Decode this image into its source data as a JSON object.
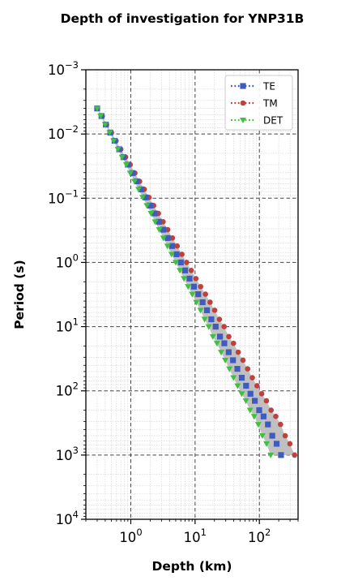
{
  "chart_data": {
    "type": "scatter",
    "title": "Depth of investigation for YNP31B",
    "xlabel": "Depth (km)",
    "ylabel": "Period (s)",
    "x_scale": "log",
    "y_scale": "log",
    "y_inverted": true,
    "xlim": [
      0.2,
      400
    ],
    "ylim": [
      0.001,
      10000
    ],
    "x_ticks": [
      {
        "value": 1,
        "base": "10",
        "exp": "0"
      },
      {
        "value": 10,
        "base": "10",
        "exp": "1"
      },
      {
        "value": 100,
        "base": "10",
        "exp": "2"
      }
    ],
    "y_ticks": [
      {
        "value": 0.001,
        "base": "10",
        "exp": "−3"
      },
      {
        "value": 0.01,
        "base": "10",
        "exp": "−2"
      },
      {
        "value": 0.1,
        "base": "10",
        "exp": "−1"
      },
      {
        "value": 1,
        "base": "10",
        "exp": "0"
      },
      {
        "value": 10,
        "base": "10",
        "exp": "1"
      },
      {
        "value": 100,
        "base": "10",
        "exp": "2"
      },
      {
        "value": 1000,
        "base": "10",
        "exp": "3"
      },
      {
        "value": 10000,
        "base": "10",
        "exp": "4"
      }
    ],
    "grid": true,
    "legend_position": "top-right",
    "periods": [
      0.004,
      0.00525,
      0.00713,
      0.0095,
      0.01275,
      0.01731,
      0.02294,
      0.03,
      0.04062,
      0.05464,
      0.07273,
      0.09714,
      0.1301,
      0.1726,
      0.2329,
      0.3088,
      0.4167,
      0.5556,
      0.7463,
      1.0,
      1.333,
      1.786,
      2.381,
      3.125,
      4.167,
      5.556,
      7.692,
      10.0,
      14.29,
      18.18,
      25.0,
      33.33,
      45.45,
      62.5,
      83.33,
      111.1,
      142.9,
      200.0,
      250.0,
      333.3,
      500.0,
      666.7,
      1000.0
    ],
    "series": [
      {
        "name": "TE",
        "color": "#3f5bbd",
        "marker": "square",
        "line": "dotted",
        "x": [
          0.3,
          0.35,
          0.41,
          0.48,
          0.56,
          0.66,
          0.77,
          0.9,
          1.06,
          1.24,
          1.45,
          1.7,
          2.0,
          2.35,
          2.75,
          3.2,
          3.75,
          4.4,
          5.15,
          6.0,
          7.0,
          8.2,
          9.6,
          11.2,
          13.1,
          15.3,
          17.9,
          20.9,
          24.4,
          28.5,
          33.3,
          38.9,
          45.5,
          53.2,
          62.2,
          72.7,
          85.0,
          99.4,
          116.2,
          135.8,
          158.8,
          185.6,
          217.0
        ]
      },
      {
        "name": "TM",
        "color": "#c0403e",
        "marker": "circle",
        "line": "dotted",
        "x": [
          0.3,
          0.36,
          0.42,
          0.5,
          0.59,
          0.7,
          0.83,
          0.98,
          1.16,
          1.37,
          1.62,
          1.92,
          2.27,
          2.69,
          3.18,
          3.76,
          4.45,
          5.27,
          6.24,
          7.38,
          8.73,
          10.3,
          12.2,
          14.5,
          17.1,
          20.2,
          23.9,
          28.3,
          33.5,
          39.6,
          46.9,
          55.5,
          65.7,
          77.7,
          91.9,
          108.8,
          128.7,
          152.3,
          180.2,
          213.2,
          252.2,
          298.4,
          353.1
        ]
      },
      {
        "name": "DET",
        "color": "#3fc03f",
        "marker": "triangle-down",
        "line": "dotted",
        "x": [
          0.3,
          0.34,
          0.4,
          0.47,
          0.54,
          0.63,
          0.73,
          0.85,
          0.98,
          1.14,
          1.32,
          1.53,
          1.78,
          2.06,
          2.39,
          2.77,
          3.21,
          3.72,
          4.31,
          5.0,
          5.8,
          6.72,
          7.79,
          9.03,
          10.47,
          12.14,
          14.07,
          16.31,
          18.91,
          21.93,
          25.42,
          29.47,
          34.17,
          39.62,
          45.93,
          53.25,
          61.73,
          71.57,
          82.97,
          96.19,
          111.5,
          129.3,
          149.9
        ]
      }
    ]
  }
}
